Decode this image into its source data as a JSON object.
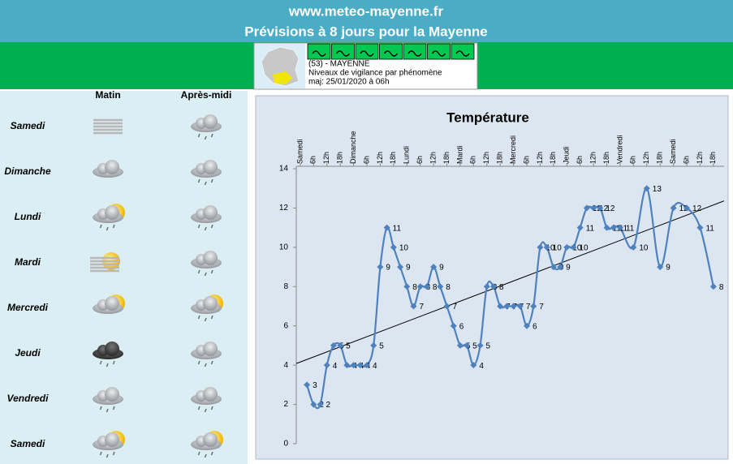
{
  "header": {
    "site": "www.meteo-mayenne.fr",
    "title": "Prévisions à 8 jours pour la Mayenne"
  },
  "vigilance": {
    "department": "(53) - MAYENNE",
    "subtitle": "Niveaux de vigilance par phénomène",
    "updated": "maj: 25/01/2020 à 06h"
  },
  "forecast": {
    "columns": [
      "Matin",
      "Après-midi"
    ],
    "days": [
      "Samedi",
      "Dimanche",
      "Lundi",
      "Mardi",
      "Mercredi",
      "Jeudi",
      "Vendredi",
      "Samedi"
    ]
  },
  "chart_data": {
    "type": "line",
    "title": "Température",
    "categories": [
      "Samedi",
      "6h",
      "12h",
      "18h",
      "Dimanche",
      "6h",
      "12h",
      "18h",
      "Lundi",
      "6h",
      "12h",
      "18h",
      "Mardi",
      "6h",
      "12h",
      "18h",
      "Mercredi",
      "6h",
      "12h",
      "18h",
      "Jeudi",
      "6h",
      "12h",
      "18h",
      "Vendredi",
      "6h",
      "12h",
      "18h",
      "Samedi",
      "6h",
      "12h",
      "18h"
    ],
    "x": [
      0.5,
      1,
      1.5,
      2,
      2.5,
      3,
      3.5,
      4,
      4.5,
      5,
      5.5,
      6,
      6.5,
      7,
      7.5,
      8,
      8.5,
      9,
      9.5,
      10,
      10.5,
      11,
      11.5,
      12,
      12.5,
      13,
      13.5,
      14,
      14.5,
      15,
      15.5,
      16,
      16.5,
      17,
      17.5,
      18,
      18.5,
      19,
      19.5,
      20,
      20.5,
      21,
      21.5,
      22,
      22.5,
      23,
      23.5,
      24,
      25,
      26,
      27,
      28,
      29,
      30,
      31
    ],
    "values": [
      3,
      2,
      2,
      4,
      5,
      5,
      4,
      4,
      4,
      4,
      5,
      9,
      11,
      10,
      9,
      8,
      7,
      8,
      8,
      9,
      8,
      7,
      6,
      5,
      5,
      4,
      5,
      8,
      8,
      7,
      7,
      7,
      7,
      6,
      7,
      10,
      10,
      9,
      9,
      10,
      10,
      11,
      12,
      12,
      12,
      11,
      11,
      11,
      10,
      13,
      9,
      12,
      12,
      11,
      8
    ],
    "color": "#4f81bd",
    "trendline": true,
    "trend_color": "#000000",
    "xlim": [
      -0.3,
      31.8
    ],
    "ylim": [
      0,
      14
    ],
    "yticks": [
      0,
      2,
      4,
      6,
      8,
      10,
      12,
      14
    ],
    "grid": false
  }
}
